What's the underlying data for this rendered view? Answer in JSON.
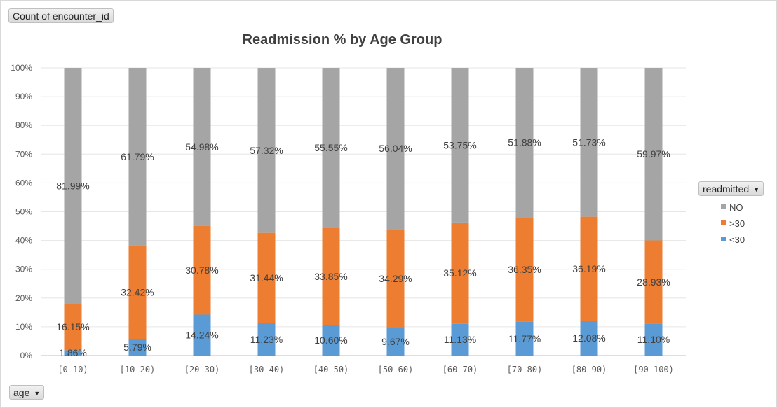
{
  "fields": {
    "values_field": "Count of encounter_id",
    "axis_field": "age",
    "legend_field": "readmitted"
  },
  "chart_data": {
    "type": "bar",
    "stacked": "100%",
    "title": "Readmission % by Age Group",
    "categories": [
      "[0-10)",
      "[10-20)",
      "[20-30)",
      "[30-40)",
      "[40-50)",
      "[50-60)",
      "[60-70)",
      "[70-80)",
      "[80-90)",
      "[90-100)"
    ],
    "series": [
      {
        "name": "<30",
        "color": "#5b9bd5",
        "values": [
          1.86,
          5.79,
          14.24,
          11.23,
          10.6,
          9.67,
          11.13,
          11.77,
          12.08,
          11.1
        ],
        "labels": [
          "1.86%",
          "5.79%",
          "14.24%",
          "11.23%",
          "10.60%",
          "9.67%",
          "11.13%",
          "11.77%",
          "12.08%",
          "11.10%"
        ]
      },
      {
        "name": ">30",
        "color": "#ed7d31",
        "values": [
          16.15,
          32.42,
          30.78,
          31.44,
          33.85,
          34.29,
          35.12,
          36.35,
          36.19,
          28.93
        ],
        "labels": [
          "16.15%",
          "32.42%",
          "30.78%",
          "31.44%",
          "33.85%",
          "34.29%",
          "35.12%",
          "36.35%",
          "36.19%",
          "28.93%"
        ]
      },
      {
        "name": "NO",
        "color": "#a5a5a5",
        "values": [
          81.99,
          61.79,
          54.98,
          57.32,
          55.55,
          56.04,
          53.75,
          51.88,
          51.73,
          59.97
        ],
        "labels": [
          "81.99%",
          "61.79%",
          "54.98%",
          "57.32%",
          "55.55%",
          "56.04%",
          "53.75%",
          "51.88%",
          "51.73%",
          "59.97%"
        ]
      }
    ],
    "ylim": [
      0,
      100
    ],
    "yticks": [
      "0%",
      "10%",
      "20%",
      "30%",
      "40%",
      "50%",
      "60%",
      "70%",
      "80%",
      "90%",
      "100%"
    ],
    "grid": true,
    "legend_position": "right"
  }
}
